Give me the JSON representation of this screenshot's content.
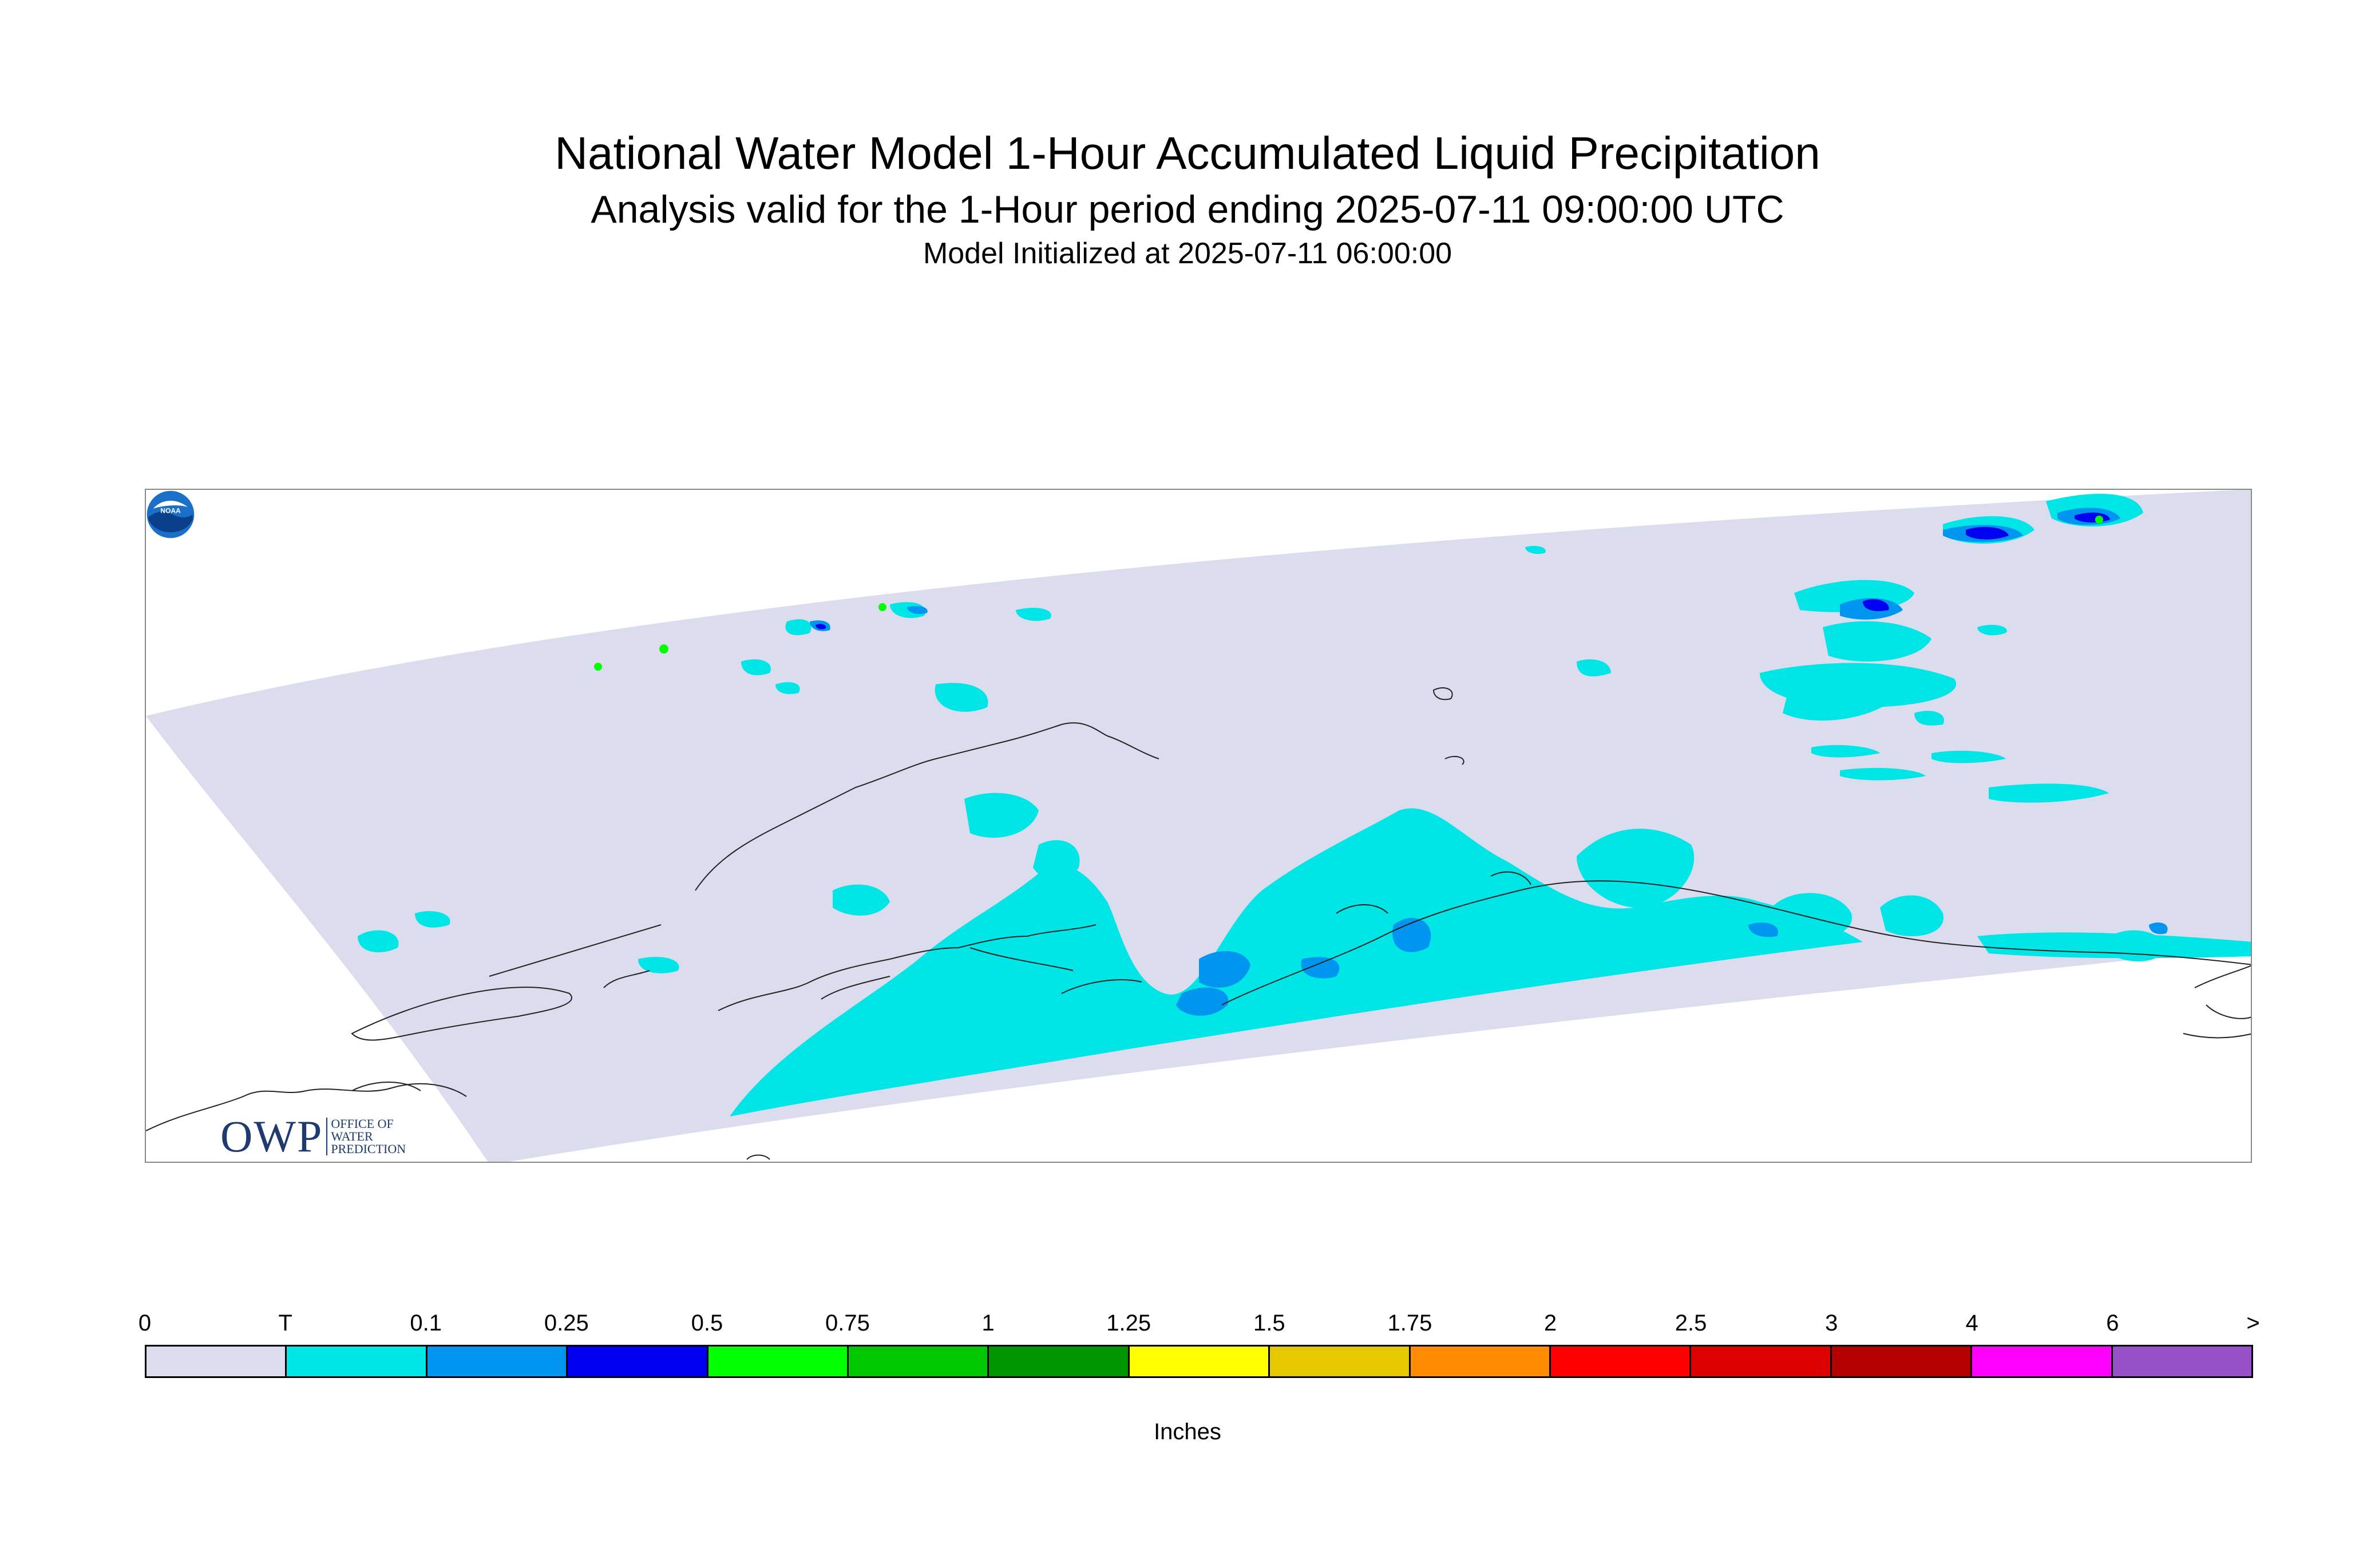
{
  "title": "National Water Model 1-Hour Accumulated Liquid Precipitation",
  "subtitle": "Analysis valid for the 1-Hour period ending 2025-07-11 09:00:00 UTC",
  "init_line": "Model Initialized at 2025-07-11 06:00:00",
  "logos": {
    "owp": {
      "letters": "OWP",
      "line1": "OFFICE OF",
      "line2": "WATER",
      "line3": "PREDICTION"
    },
    "noaa": "NOAA"
  },
  "legend": {
    "labels": [
      "0",
      "T",
      "0.1",
      "0.25",
      "0.5",
      "0.75",
      "1",
      "1.25",
      "1.5",
      "1.75",
      "2",
      "2.5",
      "3",
      "4",
      "6",
      ">"
    ],
    "colors": [
      "#dcdcef",
      "#00e6e6",
      "#0096f0",
      "#0000f0",
      "#00ff00",
      "#00c800",
      "#009600",
      "#ffff00",
      "#e6c800",
      "#ff8c00",
      "#ff0000",
      "#dc0000",
      "#b40000",
      "#ff00ff",
      "#9650c8"
    ],
    "units": "Inches"
  },
  "map_colors": {
    "domain": "#dcdcef",
    "trace": "#00e6e6",
    "light": "#0096f0",
    "medium": "#0000f0",
    "heavy": "#00ff00",
    "coast": "#222222"
  }
}
